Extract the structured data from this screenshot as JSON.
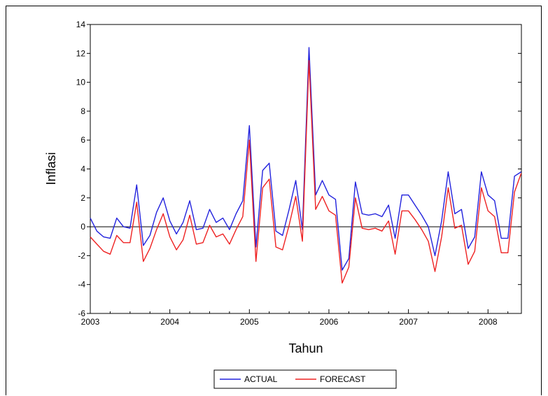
{
  "chart_data": {
    "type": "line",
    "title": "",
    "xlabel": "Tahun",
    "ylabel": "Inflasi",
    "xlim": [
      2003,
      2008.42
    ],
    "ylim": [
      -6,
      14
    ],
    "yticks": [
      -6,
      -4,
      -2,
      0,
      2,
      4,
      6,
      8,
      10,
      12,
      14
    ],
    "xticks": [
      2003,
      2004,
      2005,
      2006,
      2007,
      2008
    ],
    "zero_line": true,
    "grid": false,
    "legend_position": "bottom-center",
    "colors": {
      "ACTUAL": "#2222dd",
      "FORECAST": "#ee2222"
    },
    "x": [
      2003.0,
      2003.083,
      2003.167,
      2003.25,
      2003.333,
      2003.417,
      2003.5,
      2003.583,
      2003.667,
      2003.75,
      2003.833,
      2003.917,
      2004.0,
      2004.083,
      2004.167,
      2004.25,
      2004.333,
      2004.417,
      2004.5,
      2004.583,
      2004.667,
      2004.75,
      2004.833,
      2004.917,
      2005.0,
      2005.083,
      2005.167,
      2005.25,
      2005.333,
      2005.417,
      2005.5,
      2005.583,
      2005.667,
      2005.75,
      2005.833,
      2005.917,
      2006.0,
      2006.083,
      2006.167,
      2006.25,
      2006.333,
      2006.417,
      2006.5,
      2006.583,
      2006.667,
      2006.75,
      2006.833,
      2006.917,
      2007.0,
      2007.083,
      2007.167,
      2007.25,
      2007.333,
      2007.417,
      2007.5,
      2007.583,
      2007.667,
      2007.75,
      2007.833,
      2007.917,
      2008.0,
      2008.083,
      2008.167,
      2008.25,
      2008.333,
      2008.417
    ],
    "series": [
      {
        "name": "ACTUAL",
        "values": [
          0.6,
          -0.3,
          -0.7,
          -0.8,
          0.6,
          0.0,
          -0.1,
          2.9,
          -1.3,
          -0.6,
          1.0,
          2.0,
          0.4,
          -0.5,
          0.3,
          1.8,
          -0.2,
          -0.1,
          1.2,
          0.3,
          0.6,
          -0.2,
          0.9,
          1.8,
          7.0,
          -1.4,
          3.9,
          4.4,
          -0.3,
          -0.6,
          1.2,
          3.2,
          -0.2,
          12.4,
          2.2,
          3.2,
          2.2,
          1.9,
          -3.0,
          -2.2,
          3.1,
          0.9,
          0.8,
          0.9,
          0.7,
          1.5,
          -0.8,
          2.2,
          2.2,
          1.5,
          0.8,
          0.0,
          -2.0,
          0.4,
          3.8,
          0.9,
          1.2,
          -1.5,
          -0.7,
          3.8,
          2.2,
          1.8,
          -0.8,
          -0.8,
          3.5,
          3.8
        ]
      },
      {
        "name": "FORECAST",
        "values": [
          -0.7,
          -1.2,
          -1.7,
          -1.9,
          -0.6,
          -1.1,
          -1.1,
          1.7,
          -2.4,
          -1.5,
          -0.2,
          0.9,
          -0.7,
          -1.6,
          -0.9,
          0.8,
          -1.2,
          -1.1,
          0.1,
          -0.7,
          -0.5,
          -1.2,
          -0.2,
          0.7,
          6.0,
          -2.4,
          2.7,
          3.3,
          -1.4,
          -1.6,
          0.1,
          2.1,
          -1.0,
          11.5,
          1.2,
          2.1,
          1.1,
          0.8,
          -3.9,
          -2.8,
          2.0,
          -0.1,
          -0.2,
          -0.1,
          -0.3,
          0.4,
          -1.9,
          1.1,
          1.1,
          0.5,
          -0.2,
          -1.0,
          -3.1,
          -0.7,
          2.7,
          -0.1,
          0.1,
          -2.6,
          -1.7,
          2.7,
          1.1,
          0.7,
          -1.8,
          -1.8,
          2.4,
          3.7
        ]
      }
    ]
  }
}
